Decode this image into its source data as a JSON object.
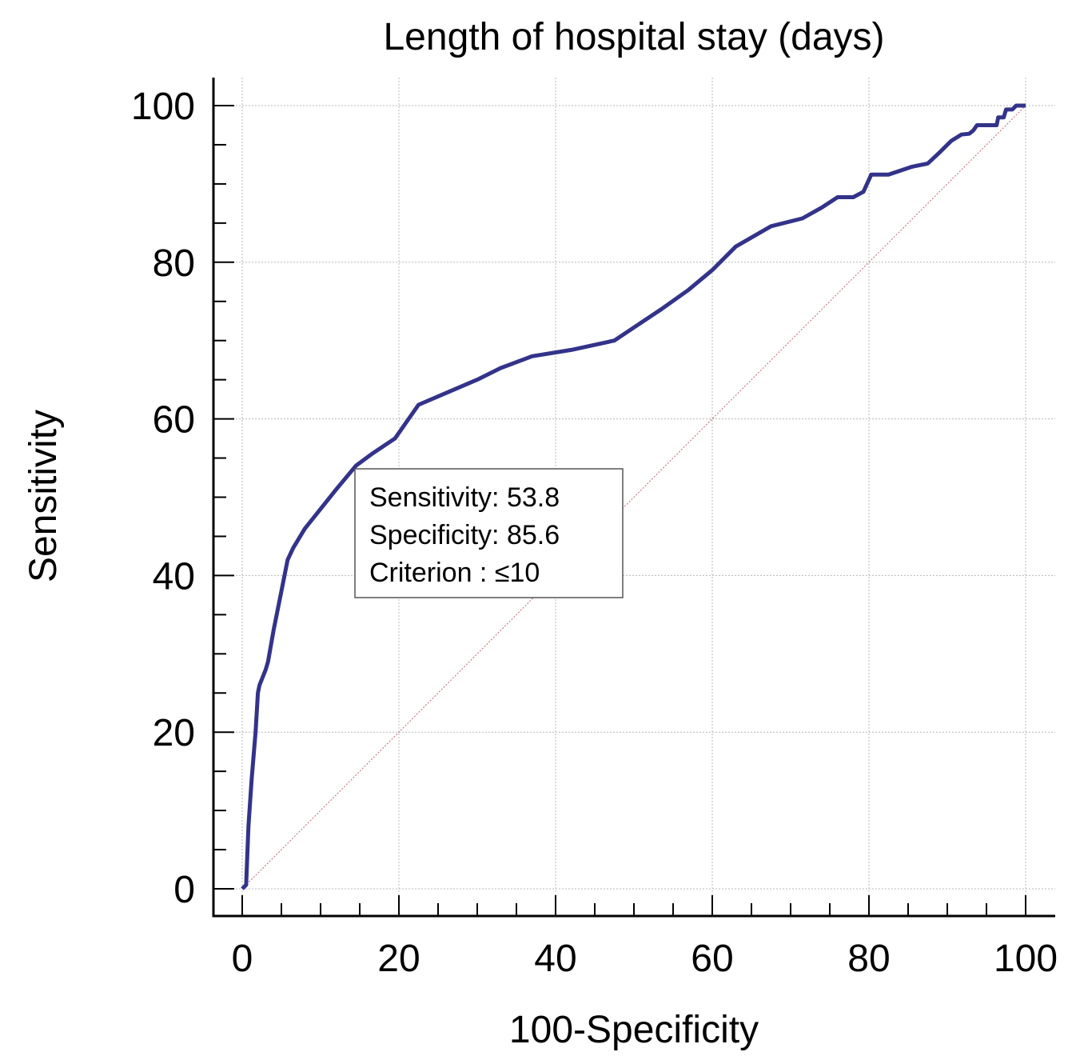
{
  "chart_data": {
    "type": "line",
    "title": "Length of hospital stay (days)",
    "xlabel": "100-Specificity",
    "ylabel": "Sensitivity",
    "xlim": [
      0,
      100
    ],
    "ylim": [
      0,
      100
    ],
    "xticks": [
      "0",
      "20",
      "40",
      "60",
      "80",
      "100"
    ],
    "yticks": [
      "0",
      "20",
      "40",
      "60",
      "80",
      "100"
    ],
    "grid": true,
    "series": [
      {
        "name": "ROC curve",
        "color": "#33338a",
        "x": [
          0,
          0.5,
          0.8,
          1.2,
          1.7,
          2.0,
          2.2,
          3.0,
          3.3,
          4.0,
          5.0,
          5.8,
          6.5,
          8.0,
          10.0,
          12.0,
          14.5,
          16.5,
          19.5,
          22.5,
          26.0,
          30.0,
          33.0,
          37.0,
          42.0,
          47.5,
          50.5,
          53.5,
          57.0,
          60.0,
          63.0,
          67.5,
          71.5,
          74.0,
          76.0,
          78.0,
          79.3,
          80.3,
          82.5,
          85.5,
          87.5,
          89.0,
          90.5,
          91.8,
          92.8,
          93.3,
          93.8,
          94.5,
          95.5,
          96.3,
          96.5,
          97.2,
          97.5,
          98.3,
          98.8,
          100
        ],
        "y": [
          0,
          0.5,
          8,
          14,
          20,
          25,
          26,
          28,
          29,
          33,
          38,
          42,
          43.5,
          46,
          48.5,
          51,
          54,
          55.5,
          57.5,
          61.8,
          63.3,
          65,
          66.5,
          68,
          68.8,
          70,
          72,
          74,
          76.5,
          79,
          82,
          84.6,
          85.6,
          87,
          88.3,
          88.3,
          89,
          91.2,
          91.2,
          92.2,
          92.6,
          94,
          95.5,
          96.3,
          96.4,
          96.8,
          97.5,
          97.5,
          97.5,
          97.5,
          98.5,
          98.5,
          99.5,
          99.5,
          100,
          100
        ]
      },
      {
        "name": "Reference line",
        "color": "#c08080",
        "x": [
          0,
          100
        ],
        "y": [
          0,
          100
        ]
      }
    ],
    "annotation": {
      "lines": [
        "Sensitivity: 53.8",
        "Specificity: 85.6",
        "Criterion : ≤10"
      ],
      "anchor": [
        14.5,
        54
      ]
    }
  }
}
